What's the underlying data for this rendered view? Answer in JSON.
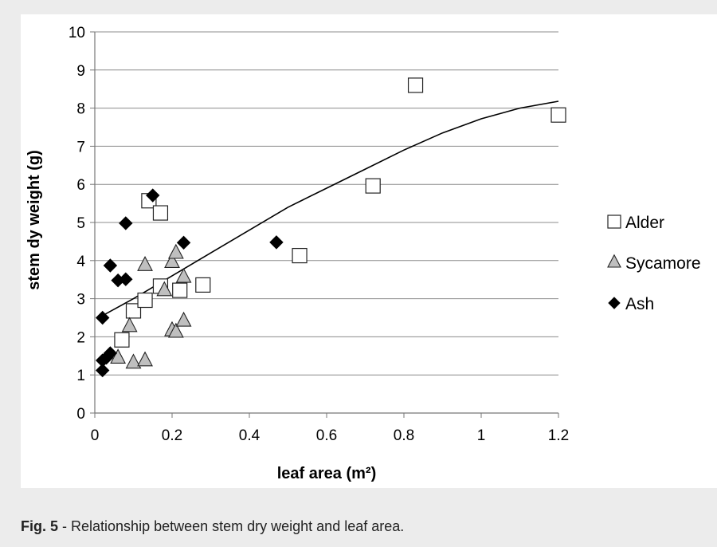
{
  "chart_data": {
    "type": "scatter",
    "xlabel": "leaf area (m²)",
    "ylabel": "stem dy weight (g)",
    "xlim": [
      0,
      1.2
    ],
    "ylim": [
      0,
      10
    ],
    "xticks": [
      0,
      0.2,
      0.4,
      0.6,
      0.8,
      1,
      1.2
    ],
    "xtick_labels": [
      "0",
      "0.2",
      "0.4",
      "0.6",
      "0.8",
      "1",
      "1.2"
    ],
    "yticks": [
      0,
      1,
      2,
      3,
      4,
      5,
      6,
      7,
      8,
      9,
      10
    ],
    "ytick_labels": [
      "0",
      "1",
      "2",
      "3",
      "4",
      "5",
      "6",
      "7",
      "8",
      "9",
      "10"
    ],
    "grid": "horizontal",
    "legend_position": "right",
    "series": [
      {
        "name": "Alder",
        "marker": "square",
        "color": "#ffffff",
        "stroke": "#222222",
        "points": [
          [
            0.07,
            1.92
          ],
          [
            0.1,
            2.68
          ],
          [
            0.13,
            2.96
          ],
          [
            0.14,
            5.57
          ],
          [
            0.17,
            5.25
          ],
          [
            0.17,
            3.33
          ],
          [
            0.22,
            3.22
          ],
          [
            0.28,
            3.36
          ],
          [
            0.53,
            4.13
          ],
          [
            0.72,
            5.96
          ],
          [
            0.83,
            8.6
          ],
          [
            1.2,
            7.82
          ]
        ]
      },
      {
        "name": "Sycamore",
        "marker": "triangle",
        "color": "#bfbfbf",
        "stroke": "#222222",
        "points": [
          [
            0.06,
            1.45
          ],
          [
            0.1,
            1.32
          ],
          [
            0.13,
            1.38
          ],
          [
            0.09,
            2.28
          ],
          [
            0.13,
            3.88
          ],
          [
            0.18,
            3.22
          ],
          [
            0.2,
            3.96
          ],
          [
            0.21,
            4.2
          ],
          [
            0.23,
            3.57
          ],
          [
            0.2,
            2.17
          ],
          [
            0.21,
            2.13
          ],
          [
            0.23,
            2.42
          ]
        ]
      },
      {
        "name": "Ash",
        "marker": "diamond",
        "color": "#000000",
        "stroke": "#000000",
        "points": [
          [
            0.02,
            1.12
          ],
          [
            0.02,
            1.38
          ],
          [
            0.03,
            1.45
          ],
          [
            0.04,
            1.57
          ],
          [
            0.02,
            2.5
          ],
          [
            0.04,
            3.87
          ],
          [
            0.06,
            3.48
          ],
          [
            0.08,
            3.51
          ],
          [
            0.08,
            4.98
          ],
          [
            0.15,
            5.71
          ],
          [
            0.23,
            4.47
          ],
          [
            0.47,
            4.48
          ]
        ]
      }
    ],
    "trendline": {
      "type": "polynomial",
      "color": "#000000",
      "points": [
        [
          0.01,
          2.5
        ],
        [
          0.1,
          3.0
        ],
        [
          0.2,
          3.6
        ],
        [
          0.3,
          4.2
        ],
        [
          0.4,
          4.8
        ],
        [
          0.5,
          5.4
        ],
        [
          0.6,
          5.9
        ],
        [
          0.7,
          6.4
        ],
        [
          0.8,
          6.9
        ],
        [
          0.9,
          7.35
        ],
        [
          1.0,
          7.72
        ],
        [
          1.1,
          8.0
        ],
        [
          1.2,
          8.18
        ]
      ]
    }
  },
  "caption": {
    "label": "Fig. 5",
    "text": " - Relationship between stem dry weight and leaf area."
  }
}
